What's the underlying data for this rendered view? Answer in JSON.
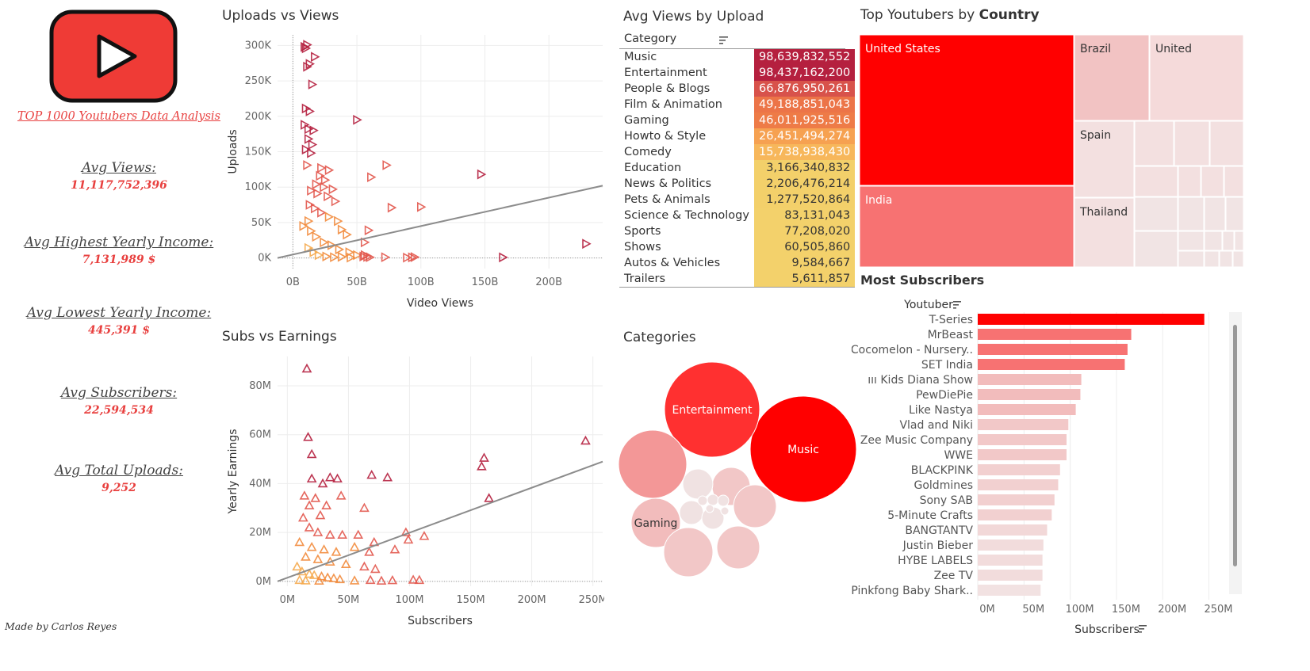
{
  "report": {
    "title": "TOP 1000 Youtubers Data Analysis",
    "credit": "Made by Carlos Reyes",
    "logo_icon": "play-button-icon"
  },
  "kpis": [
    {
      "label": "Avg Views:",
      "value": "11,117,752,396"
    },
    {
      "label": "Avg Highest Yearly Income:",
      "value": "7,131,989 $"
    },
    {
      "label": "Avg Lowest Yearly Income:",
      "value": "445,391 $"
    },
    {
      "label": "Avg Subscribers:",
      "value": "22,594,534"
    },
    {
      "label": "Avg Total Uploads:",
      "value": "9,252"
    }
  ],
  "colors": {
    "red": "#ff0000",
    "dark_red": "#b5203f",
    "orange": "#f28b3c",
    "yellow": "#f2d16b",
    "grey_line": "#8c8c8c"
  },
  "chart_data": [
    {
      "id": "uploads_vs_views",
      "type": "scatter",
      "title": "Uploads vs Views",
      "xlabel": "Video Views",
      "ylabel": "Uploads",
      "xlim": [
        -12,
        242
      ],
      "ylim": [
        -15000,
        315000
      ],
      "x_ticks": [
        "0B",
        "50B",
        "100B",
        "150B",
        "200B"
      ],
      "x_tick_values": [
        0,
        50,
        100,
        150,
        200
      ],
      "y_ticks": [
        "0K",
        "50K",
        "100K",
        "150K",
        "200K",
        "250K",
        "300K"
      ],
      "y_tick_values": [
        0,
        50000,
        100000,
        150000,
        200000,
        250000,
        300000
      ],
      "trend": [
        [
          -12,
          0
        ],
        [
          242,
          102000
        ]
      ],
      "points": [
        [
          11,
          301000
        ],
        [
          10,
          296000
        ],
        [
          9,
          298000
        ],
        [
          13,
          274000
        ],
        [
          17,
          284000
        ],
        [
          11,
          270000
        ],
        [
          15,
          245000
        ],
        [
          10,
          211000
        ],
        [
          13,
          207000
        ],
        [
          9,
          188000
        ],
        [
          12,
          182000
        ],
        [
          16,
          180000
        ],
        [
          12,
          168000
        ],
        [
          15,
          160000
        ],
        [
          10,
          153000
        ],
        [
          14,
          148000
        ],
        [
          11,
          131000
        ],
        [
          22,
          127000
        ],
        [
          28,
          124000
        ],
        [
          21,
          116000
        ],
        [
          25,
          110000
        ],
        [
          31,
          97000
        ],
        [
          18,
          104000
        ],
        [
          24,
          100000
        ],
        [
          14,
          95000
        ],
        [
          19,
          91000
        ],
        [
          27,
          87000
        ],
        [
          33,
          80000
        ],
        [
          13,
          75000
        ],
        [
          17,
          70000
        ],
        [
          22,
          64000
        ],
        [
          28,
          58000
        ],
        [
          12,
          52000
        ],
        [
          35,
          52000
        ],
        [
          38,
          40000
        ],
        [
          42,
          33000
        ],
        [
          8,
          45000
        ],
        [
          14,
          38000
        ],
        [
          18,
          30000
        ],
        [
          24,
          22000
        ],
        [
          30,
          18000
        ],
        [
          36,
          12000
        ],
        [
          44,
          8000
        ],
        [
          50,
          4000
        ],
        [
          12,
          14000
        ],
        [
          16,
          8000
        ],
        [
          20,
          4000
        ],
        [
          26,
          2000
        ],
        [
          32,
          1000
        ],
        [
          38,
          1500
        ],
        [
          45,
          500
        ],
        [
          55,
          2000
        ],
        [
          60,
          1000
        ],
        [
          50,
          195000
        ],
        [
          73,
          131000
        ],
        [
          61,
          114000
        ],
        [
          147,
          118000
        ],
        [
          77,
          71000
        ],
        [
          100,
          72000
        ],
        [
          59,
          39000
        ],
        [
          56,
          22000
        ],
        [
          56,
          4000
        ],
        [
          58,
          1500
        ],
        [
          72,
          1000
        ],
        [
          89,
          500
        ],
        [
          93,
          800
        ],
        [
          95,
          1200
        ],
        [
          164,
          800
        ],
        [
          229,
          20000
        ]
      ]
    },
    {
      "id": "subs_vs_earnings",
      "type": "scatter",
      "title": "Subs vs Earnings",
      "xlabel": "Subscribers",
      "ylabel": "Yearly Earnings",
      "xlim": [
        -8,
        258
      ],
      "ylim": [
        -2000000,
        92000000
      ],
      "x_ticks": [
        "0M",
        "50M",
        "100M",
        "150M",
        "200M",
        "250M"
      ],
      "x_tick_values": [
        0,
        50,
        100,
        150,
        200,
        250
      ],
      "y_ticks": [
        "0M",
        "20M",
        "40M",
        "60M",
        "80M"
      ],
      "y_tick_values": [
        0,
        20000000,
        40000000,
        60000000,
        80000000
      ],
      "trend": [
        [
          -8,
          0
        ],
        [
          258,
          49000000
        ]
      ],
      "points": [
        [
          16,
          87000000
        ],
        [
          17,
          59000000
        ],
        [
          20,
          52000000
        ],
        [
          244,
          57500000
        ],
        [
          161,
          50500000
        ],
        [
          159,
          47000000
        ],
        [
          69,
          43500000
        ],
        [
          82,
          42500000
        ],
        [
          35,
          42500000
        ],
        [
          41,
          42000000
        ],
        [
          165,
          34000000
        ],
        [
          20,
          42000000
        ],
        [
          29,
          40000000
        ],
        [
          14,
          35000000
        ],
        [
          23,
          34000000
        ],
        [
          44,
          35000000
        ],
        [
          18,
          31000000
        ],
        [
          32,
          31000000
        ],
        [
          63,
          30000000
        ],
        [
          13,
          26000000
        ],
        [
          27,
          27000000
        ],
        [
          18,
          22000000
        ],
        [
          25,
          20000000
        ],
        [
          35,
          19000000
        ],
        [
          45,
          19000000
        ],
        [
          58,
          19000000
        ],
        [
          97,
          20000000
        ],
        [
          99,
          17000000
        ],
        [
          112,
          18500000
        ],
        [
          71,
          16000000
        ],
        [
          88,
          13000000
        ],
        [
          10,
          16000000
        ],
        [
          20,
          14000000
        ],
        [
          30,
          13000000
        ],
        [
          40,
          12000000
        ],
        [
          55,
          14000000
        ],
        [
          67,
          12000000
        ],
        [
          15,
          10000000
        ],
        [
          25,
          9000000
        ],
        [
          35,
          8000000
        ],
        [
          48,
          7000000
        ],
        [
          63,
          6000000
        ],
        [
          72,
          5000000
        ],
        [
          8,
          6000000
        ],
        [
          12,
          4000000
        ],
        [
          18,
          3000000
        ],
        [
          22,
          2500000
        ],
        [
          28,
          2000000
        ],
        [
          33,
          1500000
        ],
        [
          38,
          1200000
        ],
        [
          43,
          800000
        ],
        [
          10,
          500000
        ],
        [
          15,
          300000
        ],
        [
          26,
          200000
        ],
        [
          55,
          300000
        ],
        [
          68,
          500000
        ],
        [
          77,
          200000
        ],
        [
          86,
          400000
        ],
        [
          103,
          600000
        ],
        [
          108,
          500000
        ]
      ]
    },
    {
      "id": "avg_views_by_upload",
      "type": "table",
      "title": "Avg Views by Upload",
      "column_header": "Category",
      "sort_icon": "sort-descending-icon",
      "rows": [
        {
          "category": "Music",
          "value": 98639832552,
          "label": "98,639,832,552",
          "color": "#b5203f"
        },
        {
          "category": "Entertainment",
          "value": 98437162200,
          "label": "98,437,162,200",
          "color": "#b5203f"
        },
        {
          "category": "People & Blogs",
          "value": 66876950261,
          "label": "66,876,950,261",
          "color": "#d8524b"
        },
        {
          "category": "Film & Animation",
          "value": 49188851043,
          "label": "49,188,851,043",
          "color": "#ec7448"
        },
        {
          "category": "Gaming",
          "value": 46011925516,
          "label": "46,011,925,516",
          "color": "#ee7b47"
        },
        {
          "category": "Howto & Style",
          "value": 26451494274,
          "label": "26,451,494,274",
          "color": "#f6a151"
        },
        {
          "category": "Comedy",
          "value": 15738938430,
          "label": "15,738,938,430",
          "color": "#f7b75b"
        },
        {
          "category": "Education",
          "value": 3166340832,
          "label": "3,166,340,832",
          "color": "#f3d06a"
        },
        {
          "category": "News & Politics",
          "value": 2206476214,
          "label": "2,206,476,214",
          "color": "#f3d06a"
        },
        {
          "category": "Pets & Animals",
          "value": 1277520864,
          "label": "1,277,520,864",
          "color": "#f3d06a"
        },
        {
          "category": "Science & Technology",
          "value": 83131043,
          "label": "83,131,043",
          "color": "#f3d16b"
        },
        {
          "category": "Sports",
          "value": 77208020,
          "label": "77,208,020",
          "color": "#f3d16b"
        },
        {
          "category": "Shows",
          "value": 60505860,
          "label": "60,505,860",
          "color": "#f3d16b"
        },
        {
          "category": "Autos & Vehicles",
          "value": 9584667,
          "label": "9,584,667",
          "color": "#f3d16b"
        },
        {
          "category": "Trailers",
          "value": 5611857,
          "label": "5,611,857",
          "color": "#f3d16b"
        }
      ]
    },
    {
      "id": "top_youtubers_by_country",
      "type": "treemap",
      "title_prefix": "Top Youtubers by ",
      "title_bold": "Country",
      "labeled_cells": [
        "United States",
        "India",
        "Brazil",
        "United",
        "Spain",
        "Thailand"
      ],
      "cell_colors": [
        "#ff0000",
        "#f77272",
        "#f2c3c3",
        "#f5dada",
        "#f3e0e0",
        "#f1e4e4"
      ],
      "grid_color": "#eeeeee"
    },
    {
      "id": "categories",
      "type": "bubble",
      "title": "Categories",
      "bubbles": [
        {
          "label": "Music",
          "color": "#ff0000"
        },
        {
          "label": "Entertainment",
          "color": "#ff3030"
        },
        {
          "label": "",
          "color": "#f39797"
        },
        {
          "label": "Gaming",
          "color": "#f2bcbc"
        },
        {
          "label": "",
          "color": "#f2c7c7"
        },
        {
          "label": "",
          "color": "#f2c7c7"
        },
        {
          "label": "",
          "color": "#f2c7c7"
        },
        {
          "label": "",
          "color": "#f2c7c7"
        },
        {
          "label": "",
          "color": "#f0e2e2"
        },
        {
          "label": "",
          "color": "#f0e2e2"
        },
        {
          "label": "",
          "color": "#f0e2e2"
        },
        {
          "label": "",
          "color": "#f0e2e2"
        },
        {
          "label": "",
          "color": "#f0e2e2"
        },
        {
          "label": "",
          "color": "#f0e2e2"
        },
        {
          "label": "",
          "color": "#f0e2e2"
        },
        {
          "label": "",
          "color": "#f0e2e2"
        }
      ]
    },
    {
      "id": "most_subscribers",
      "type": "bar",
      "orientation": "horizontal",
      "title": "Most Subscribers",
      "ylabel": "Youtuber",
      "xlabel": "Subscribers",
      "xlim": [
        0,
        265
      ],
      "x_ticks": [
        "0M",
        "50M",
        "100M",
        "150M",
        "200M",
        "250M"
      ],
      "x_tick_values": [
        0,
        50,
        100,
        150,
        200,
        250
      ],
      "categories": [
        "T-Series",
        "MrBeast",
        "Cocomelon - Nursery..",
        "SET India",
        "ııı Kids Diana Show",
        "PewDiePie",
        "Like Nastya",
        "Vlad and Niki",
        "Zee Music Company",
        "WWE",
        "BLACKPINK",
        "Goldmines",
        "Sony SAB",
        "5-Minute Crafts",
        "BANGTANTV",
        "Justin Bieber",
        "HYBE LABELS",
        "Zee TV",
        "Pinkfong Baby Shark.."
      ],
      "values": [
        245,
        166,
        162,
        159,
        112,
        111,
        106,
        98,
        96,
        96,
        89,
        87,
        83,
        80,
        75,
        71,
        70,
        70,
        68
      ],
      "colors": [
        "#ff0000",
        "#f77272",
        "#f77272",
        "#f77272",
        "#f2bcbc",
        "#f2bcbc",
        "#f2bcbc",
        "#f2c8c8",
        "#f2c8c8",
        "#f2c8c8",
        "#f2d0d0",
        "#f2d0d0",
        "#f2d0d0",
        "#f2d0d0",
        "#f2d8d8",
        "#f2dcdc",
        "#f2dcdc",
        "#f2dcdc",
        "#f2e2e2"
      ],
      "sort_icon": "sort-descending-icon"
    }
  ]
}
